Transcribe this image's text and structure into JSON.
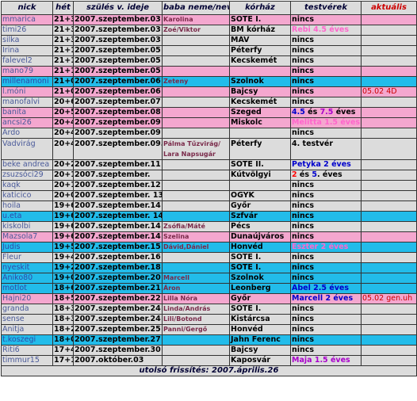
{
  "headers": {
    "nick": "nick",
    "het": "hét",
    "date": "szülés v. ideje",
    "baba": "baba neme/neve",
    "korhaz": "kórház",
    "testverek": "testvérek",
    "aktualis": "aktuális"
  },
  "rows": [
    {
      "color": "pink",
      "nick": "mmarica",
      "het": "21+3",
      "date": "2007.szeptember.03",
      "baba": "Karolina",
      "korhaz": "SOTE I.",
      "testverek": [
        {
          "t": "nincs",
          "c": "black"
        }
      ],
      "aktualis": ""
    },
    {
      "color": "grey",
      "nick": "timi26",
      "het": "21+3",
      "date": "2007.szeptember.03",
      "baba": "Zoé/Viktor",
      "korhaz": "BM kórház",
      "testverek": [
        {
          "t": "Rebi 4.5 éves",
          "c": "pink"
        }
      ],
      "aktualis": ""
    },
    {
      "color": "grey",
      "nick": "silka",
      "het": "21+3",
      "date": "2007.szeptember.03",
      "baba": "",
      "korhaz": "MÁV",
      "testverek": [
        {
          "t": "nincs",
          "c": "black"
        }
      ],
      "aktualis": ""
    },
    {
      "color": "grey",
      "nick": "Irina",
      "het": "21+1",
      "date": "2007.szeptember.05",
      "baba": "",
      "korhaz": "Péterfy",
      "testverek": [
        {
          "t": "nincs",
          "c": "black"
        }
      ],
      "aktualis": ""
    },
    {
      "color": "grey",
      "nick": "falevel2",
      "het": "21+1",
      "date": "2007.szeptember.05",
      "baba": "",
      "korhaz": "Kecskemét",
      "testverek": [
        {
          "t": "nincs",
          "c": "black"
        }
      ],
      "aktualis": ""
    },
    {
      "color": "pink",
      "nick": "mano79",
      "het": "21+1",
      "date": "2007.szeptember.05",
      "baba": "",
      "korhaz": "",
      "testverek": [
        {
          "t": "nincs",
          "c": "black"
        }
      ],
      "aktualis": ""
    },
    {
      "color": "cyan",
      "nick": "millenamoni",
      "het": "21+0",
      "date": "2007.szeptember.06",
      "baba": "Zeteny",
      "korhaz": "Szolnok",
      "testverek": [
        {
          "t": "nincs",
          "c": "black"
        }
      ],
      "aktualis": ""
    },
    {
      "color": "pink",
      "nick": "l.móni",
      "het": "21+0",
      "date": "2007.szeptember.06",
      "baba": "",
      "korhaz": "Bajcsy",
      "testverek": [
        {
          "t": "nincs",
          "c": "black"
        }
      ],
      "aktualis": "05.02 4D"
    },
    {
      "color": "grey",
      "nick": "manofalvi",
      "het": "20+6",
      "date": "2007.szeptember.07",
      "baba": "",
      "korhaz": "Kecskemét",
      "testverek": [
        {
          "t": "nincs",
          "c": "black"
        }
      ],
      "aktualis": ""
    },
    {
      "color": "pink",
      "nick": "banita",
      "het": "20+5",
      "date": "2007.szeptember.08",
      "baba": "",
      "korhaz": "Szeged",
      "testverek": [
        {
          "t": "4.5",
          "c": "blue"
        },
        {
          "t": " és ",
          "c": "black"
        },
        {
          "t": "7.5",
          "c": "purple"
        },
        {
          "t": " éves",
          "c": "black"
        }
      ],
      "aktualis": ""
    },
    {
      "color": "pink",
      "nick": "ancsi26",
      "het": "20+4",
      "date": "2007.szeptember.09",
      "baba": "",
      "korhaz": "Miskolc",
      "testverek": [
        {
          "t": "Melitta 1.5 éves",
          "c": "pink"
        }
      ],
      "aktualis": ""
    },
    {
      "color": "grey",
      "nick": "Ardo",
      "het": "20+4",
      "date": "2007.szeptember.09",
      "baba": "",
      "korhaz": "",
      "testverek": [
        {
          "t": "nincs",
          "c": "black"
        }
      ],
      "aktualis": ""
    },
    {
      "color": "grey",
      "tall": true,
      "nick": "Vadvirág",
      "het": "20+4",
      "date": "2007.szeptember.09.",
      "baba": "Pálma Tűzvirág/ Lara Napsugár",
      "korhaz": "Péterfy",
      "testverek": [
        {
          "t": "4. testvér",
          "c": "black"
        }
      ],
      "aktualis": ""
    },
    {
      "color": "grey",
      "nick": "beke andrea",
      "het": "20+2",
      "date": "2007.szeptember.11",
      "baba": "",
      "korhaz": "SOTE II.",
      "testverek": [
        {
          "t": "Petyka 2 éves",
          "c": "blue"
        }
      ],
      "aktualis": ""
    },
    {
      "color": "grey",
      "nick": "zsuzsóci29",
      "het": "20+1",
      "date": "2007.szeptember.",
      "baba": "",
      "korhaz": "Kútvölgyi",
      "testverek": [
        {
          "t": "2",
          "c": "red"
        },
        {
          "t": " és ",
          "c": "black"
        },
        {
          "t": "5",
          "c": "blue"
        },
        {
          "t": ". éves",
          "c": "black"
        }
      ],
      "aktualis": ""
    },
    {
      "color": "grey",
      "nick": "kaqk",
      "het": "20+1",
      "date": "2007.szeptember.12",
      "baba": "",
      "korhaz": "",
      "testverek": [
        {
          "t": "nincs",
          "c": "black"
        }
      ],
      "aktualis": ""
    },
    {
      "color": "grey",
      "nick": "katicico",
      "het": "20+0",
      "date": "2007.szeptember. 13",
      "baba": "",
      "korhaz": "OGYK",
      "testverek": [
        {
          "t": "nincs",
          "c": "black"
        }
      ],
      "aktualis": ""
    },
    {
      "color": "grey",
      "nick": "hoila",
      "het": "19+6",
      "date": "2007.szeptember.14",
      "baba": "",
      "korhaz": "Győr",
      "testverek": [
        {
          "t": "nincs",
          "c": "black"
        }
      ],
      "aktualis": ""
    },
    {
      "color": "cyan",
      "nick": "u.eta",
      "het": "19+6",
      "date": "2007.szeptember. 14",
      "baba": "",
      "korhaz": "Szfvár",
      "testverek": [
        {
          "t": "nincs",
          "c": "black"
        }
      ],
      "aktualis": ""
    },
    {
      "color": "grey",
      "nick": "kiskolbi",
      "het": "19+6",
      "date": "2007.szeptember.14",
      "baba": "Zsófia/Máté",
      "korhaz": "Pécs",
      "testverek": [
        {
          "t": "nincs",
          "c": "black"
        }
      ],
      "aktualis": ""
    },
    {
      "color": "pink",
      "nick": "Mazsola7",
      "het": "19+6",
      "date": "2007.szeptember.14",
      "baba": "Szelina",
      "korhaz": "Dunaújváros",
      "testverek": [
        {
          "t": "nincs",
          "c": "black"
        }
      ],
      "aktualis": ""
    },
    {
      "color": "cyan",
      "nick": "Judis",
      "het": "19+5",
      "date": "2007.szeptember.15",
      "baba": "Dávid,Dániel",
      "korhaz": "Honvéd",
      "testverek": [
        {
          "t": "Eszter 2 éves",
          "c": "pink"
        }
      ],
      "aktualis": ""
    },
    {
      "color": "grey",
      "nick": "Fleur",
      "het": "19+4",
      "date": "2007.szeptember.16",
      "baba": "",
      "korhaz": "SOTE I.",
      "testverek": [
        {
          "t": "nincs",
          "c": "black"
        }
      ],
      "aktualis": ""
    },
    {
      "color": "cyan",
      "nick": "nyeskit",
      "het": "19+2",
      "date": "2007.szeptember.18",
      "baba": "",
      "korhaz": "SOTE I.",
      "testverek": [
        {
          "t": "nincs",
          "c": "black"
        }
      ],
      "aktualis": ""
    },
    {
      "color": "cyan",
      "nick": "Aniko80",
      "het": "19+0",
      "date": "2007.szeptember.20",
      "baba": "Marcell",
      "korhaz": "Szolnok",
      "testverek": [
        {
          "t": "nincs",
          "c": "black"
        }
      ],
      "aktualis": ""
    },
    {
      "color": "cyan",
      "nick": "motlot",
      "het": "18+6",
      "date": "2007.szeptember.21",
      "baba": "Áron",
      "korhaz": "Leonberg",
      "testverek": [
        {
          "t": "Ábel 2.5 éves",
          "c": "blue"
        }
      ],
      "aktualis": ""
    },
    {
      "color": "pink",
      "nick": "Hajni20",
      "het": "18+5",
      "date": "2007.szeptember.22",
      "baba": "Lilla Nóra",
      "korhaz": "Győr",
      "testverek": [
        {
          "t": "Marcell 2 éves",
          "c": "blue"
        }
      ],
      "aktualis": "05.02 gen.uh"
    },
    {
      "color": "grey",
      "nick": "granda",
      "het": "18+3",
      "date": "2007.szeptember.24",
      "baba": "Linda/András",
      "korhaz": "SOTE I.",
      "testverek": [
        {
          "t": "nincs",
          "c": "black"
        }
      ],
      "aktualis": ""
    },
    {
      "color": "grey",
      "nick": "sense",
      "het": "18+3",
      "date": "2007.szeptember.24",
      "baba": "Lili/Botond",
      "korhaz": "Kistárcsa",
      "testverek": [
        {
          "t": "nincs",
          "c": "black"
        }
      ],
      "aktualis": ""
    },
    {
      "color": "grey",
      "nick": "Anitja",
      "het": "18+2",
      "date": "2007.szeptember.25",
      "baba": "Panni/Gergő",
      "korhaz": "Honvéd",
      "testverek": [
        {
          "t": "nincs",
          "c": "black"
        }
      ],
      "aktualis": ""
    },
    {
      "color": "cyan",
      "nick": "t.koszegi",
      "het": "18+0",
      "date": "2007.szeptember.27",
      "baba": "",
      "korhaz": "Jahn Ferenc",
      "testverek": [
        {
          "t": "nincs",
          "c": "black"
        }
      ],
      "aktualis": ""
    },
    {
      "color": "grey",
      "nick": "Riti6",
      "het": "17+4",
      "date": "2007.szeptember.30",
      "baba": "",
      "korhaz": "Bajcsy",
      "testverek": [
        {
          "t": "nincs",
          "c": "black"
        }
      ],
      "aktualis": ""
    },
    {
      "color": "grey",
      "nick": "timmur15",
      "het": "17+1",
      "date": "2007.október.03",
      "baba": "",
      "korhaz": "Kaposvár",
      "testverek": [
        {
          "t": "Maja 1.5 éves",
          "c": "purple"
        }
      ],
      "aktualis": ""
    }
  ],
  "footer": "utolsó frissítés: 2007.április.26"
}
